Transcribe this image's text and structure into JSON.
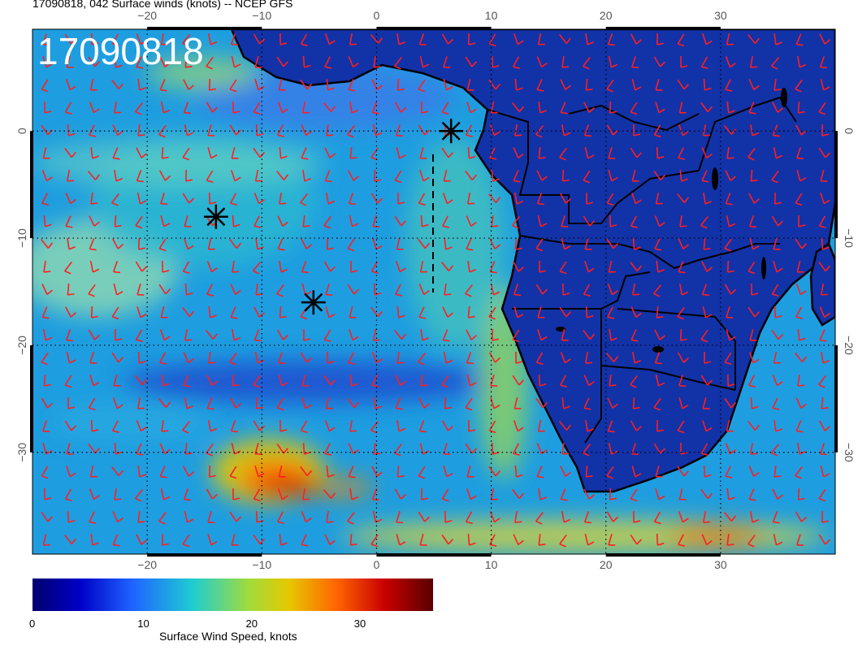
{
  "title": "17090818, 042 Surface winds (knots) -- NCEP GFS",
  "stamp": "17090818",
  "axes": {
    "lon_ticks": [
      "−20",
      "−10",
      "0",
      "10",
      "20",
      "30"
    ],
    "lat_ticks": [
      "0",
      "−10",
      "−20",
      "−30"
    ],
    "lon_range": [
      -30,
      40
    ],
    "lat_range": [
      -39.5,
      9.5
    ],
    "grid": true
  },
  "colorbar": {
    "title": "Surface Wind Speed, knots",
    "tick_labels": [
      "0",
      "10",
      "20",
      "30"
    ],
    "range": [
      0,
      37
    ],
    "colors": [
      "#00006e",
      "#0000c8",
      "#1e64ff",
      "#1ecdd2",
      "#a0dc3c",
      "#e6c800",
      "#ff6400",
      "#c80000",
      "#5a0000"
    ]
  },
  "colors": {
    "ocean_base": "#1e9ee0",
    "land_base": "#1232a8",
    "barbs": "#ff1e1e",
    "coast": "#000000"
  },
  "storm_markers": [
    {
      "lon": -14,
      "lat": -8
    },
    {
      "lon": -5.5,
      "lat": -16
    },
    {
      "lon": 6.5,
      "lat": 0
    }
  ]
}
